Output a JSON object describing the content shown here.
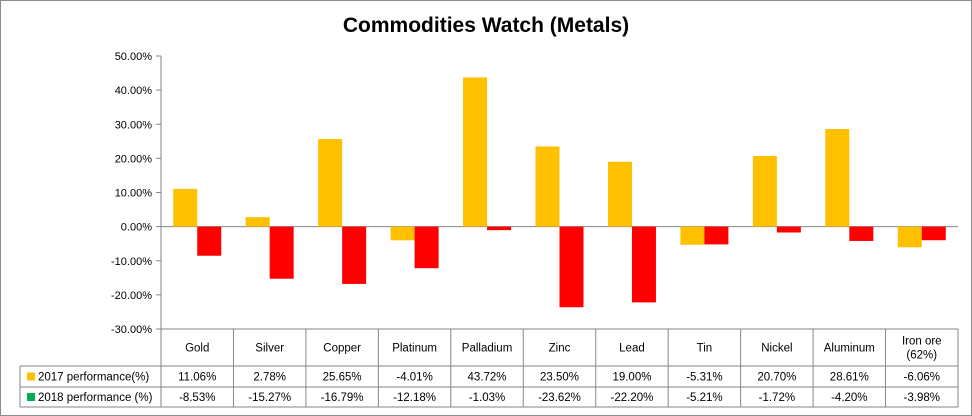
{
  "chart_data": {
    "type": "bar",
    "title": "Commodities Watch (Metals)",
    "categories": [
      "Gold",
      "Silver",
      "Copper",
      "Platinum",
      "Palladium",
      "Zinc",
      "Lead",
      "Tin",
      "Nickel",
      "Aluminum",
      "Iron ore (62%)"
    ],
    "category_lines": [
      [
        "Gold"
      ],
      [
        "Silver"
      ],
      [
        "Copper"
      ],
      [
        "Platinum"
      ],
      [
        "Palladium"
      ],
      [
        "Zinc"
      ],
      [
        "Lead"
      ],
      [
        "Tin"
      ],
      [
        "Nickel"
      ],
      [
        "Aluminum"
      ],
      [
        "Iron ore",
        "(62%)"
      ]
    ],
    "series": [
      {
        "name": "2017 performance(%)",
        "color": "#FFC000",
        "values": [
          11.06,
          2.78,
          25.65,
          -4.01,
          43.72,
          23.5,
          19.0,
          -5.31,
          20.7,
          28.61,
          -6.06
        ],
        "labels": [
          "11.06%",
          "2.78%",
          "25.65%",
          "-4.01%",
          "43.72%",
          "23.50%",
          "19.00%",
          "-5.31%",
          "20.70%",
          "28.61%",
          "-6.06%"
        ]
      },
      {
        "name": "2018 performance (%)",
        "color": "#FF0000",
        "legend_color": "#00B050",
        "values": [
          -8.53,
          -15.27,
          -16.79,
          -12.18,
          -1.03,
          -23.62,
          -22.2,
          -5.21,
          -1.72,
          -4.2,
          -3.98
        ],
        "labels": [
          "-8.53%",
          "-15.27%",
          "-16.79%",
          "-12.18%",
          "-1.03%",
          "-23.62%",
          "-22.20%",
          "-5.21%",
          "-1.72%",
          "-4.20%",
          "-3.98%"
        ]
      }
    ],
    "ylim": [
      -30,
      50
    ],
    "yticks": [
      -30,
      -20,
      -10,
      0,
      10,
      20,
      30,
      40,
      50
    ],
    "ytick_labels": [
      "-30.00%",
      "-20.00%",
      "-10.00%",
      "0.00%",
      "10.00%",
      "20.00%",
      "30.00%",
      "40.00%",
      "50.00%"
    ],
    "xlabel": "",
    "ylabel": "",
    "grid": false,
    "legend": "data table"
  }
}
